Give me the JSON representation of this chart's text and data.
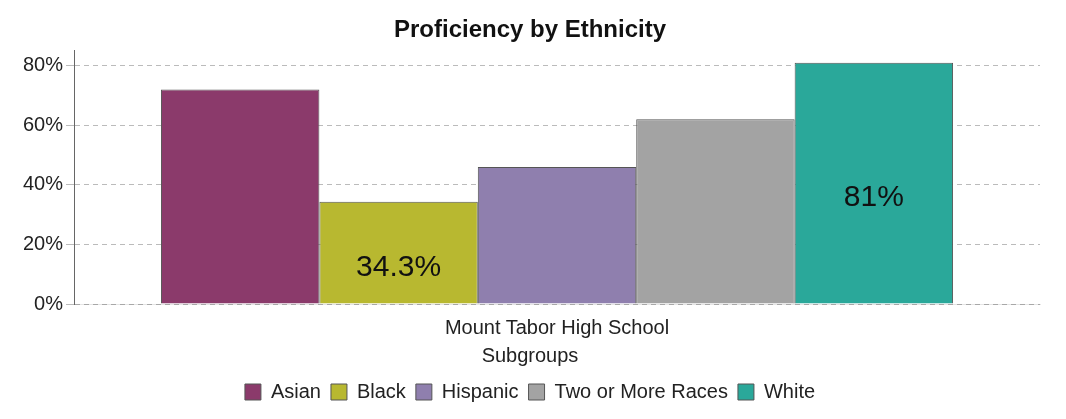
{
  "chart_data": {
    "type": "bar",
    "title": "Proficiency by Ethnicity",
    "xlabel": "Mount Tabor High School",
    "categories": [
      null
    ],
    "series": [
      {
        "name": "Asian",
        "color": "#8b3a6b",
        "values": [
          72
        ],
        "value_labels": [
          null
        ]
      },
      {
        "name": "Black",
        "color": "#b8b830",
        "values": [
          34.3
        ],
        "value_labels": [
          "34.3%"
        ]
      },
      {
        "name": "Hispanic",
        "color": "#8f7fae",
        "values": [
          46
        ],
        "value_labels": [
          null
        ]
      },
      {
        "name": "Two or More Races",
        "color": "#a3a3a3",
        "values": [
          62
        ],
        "value_labels": [
          null
        ]
      },
      {
        "name": "White",
        "color": "#2aa89a",
        "values": [
          81
        ],
        "value_labels": [
          "81%"
        ]
      }
    ],
    "ylim": [
      0,
      85
    ],
    "yticks": [
      {
        "value": 0,
        "label": "0%"
      },
      {
        "value": 20,
        "label": "20%"
      },
      {
        "value": 40,
        "label": "40%"
      },
      {
        "value": 60,
        "label": "60%"
      },
      {
        "value": 80,
        "label": "80%"
      }
    ],
    "grid": "y",
    "legend": "bottom",
    "legend_title": "Subgroups"
  }
}
